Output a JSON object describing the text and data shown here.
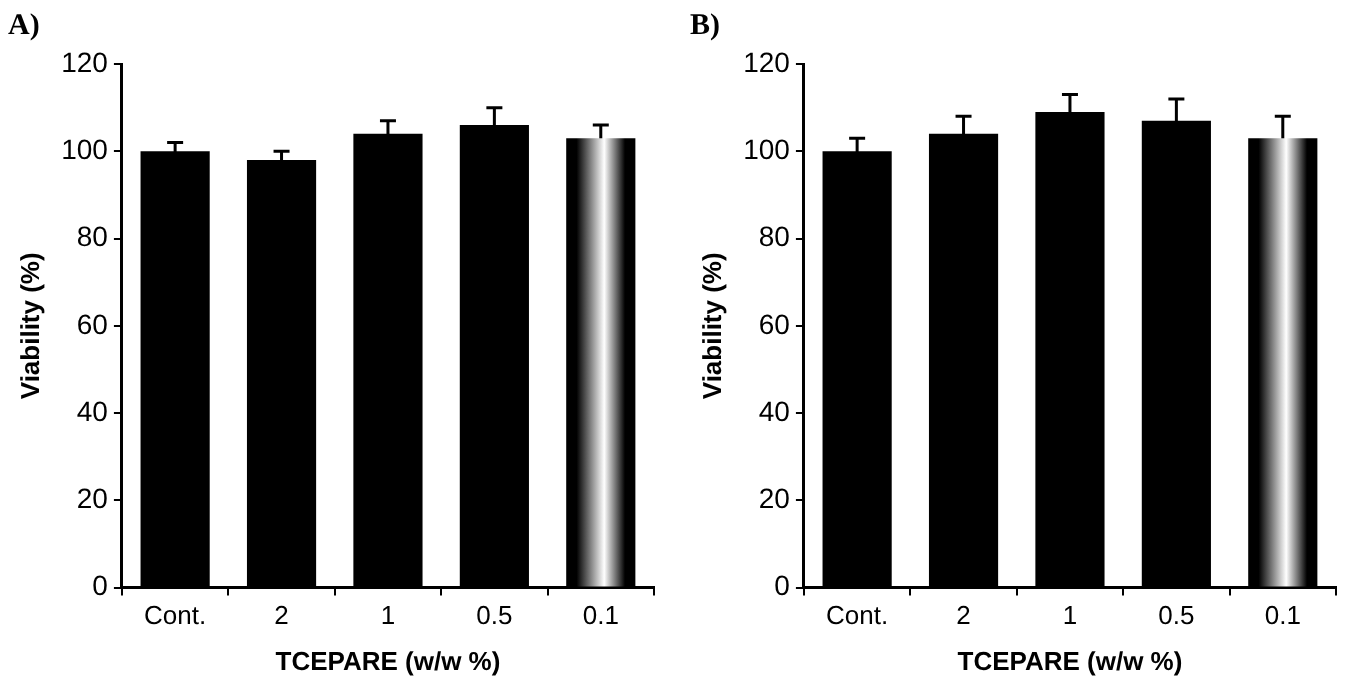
{
  "chart_data": [
    {
      "type": "bar",
      "title": "A)",
      "xlabel": "TCEPARE (w/w %)",
      "ylabel": "Viability (%)",
      "categories": [
        "Cont.",
        "2",
        "1",
        "0.5",
        "0.1"
      ],
      "color": "#000000",
      "values": [
        100,
        98,
        104,
        106,
        103
      ],
      "errors": [
        2,
        2,
        3,
        4,
        3
      ],
      "ylim": [
        0,
        120
      ],
      "yticks": [
        0,
        20,
        40,
        60,
        80,
        100,
        120
      ],
      "grid": false,
      "legend": false
    },
    {
      "type": "bar",
      "title": "B)",
      "xlabel": "TCEPARE (w/w %)",
      "ylabel": "Viability (%)",
      "categories": [
        "Cont.",
        "2",
        "1",
        "0.5",
        "0.1"
      ],
      "color": "#000000",
      "values": [
        100,
        104,
        109,
        107,
        103
      ],
      "errors": [
        3,
        4,
        4,
        5,
        5
      ],
      "ylim": [
        0,
        120
      ],
      "yticks": [
        0,
        20,
        40,
        60,
        80,
        100,
        120
      ],
      "grid": false,
      "legend": false
    }
  ]
}
